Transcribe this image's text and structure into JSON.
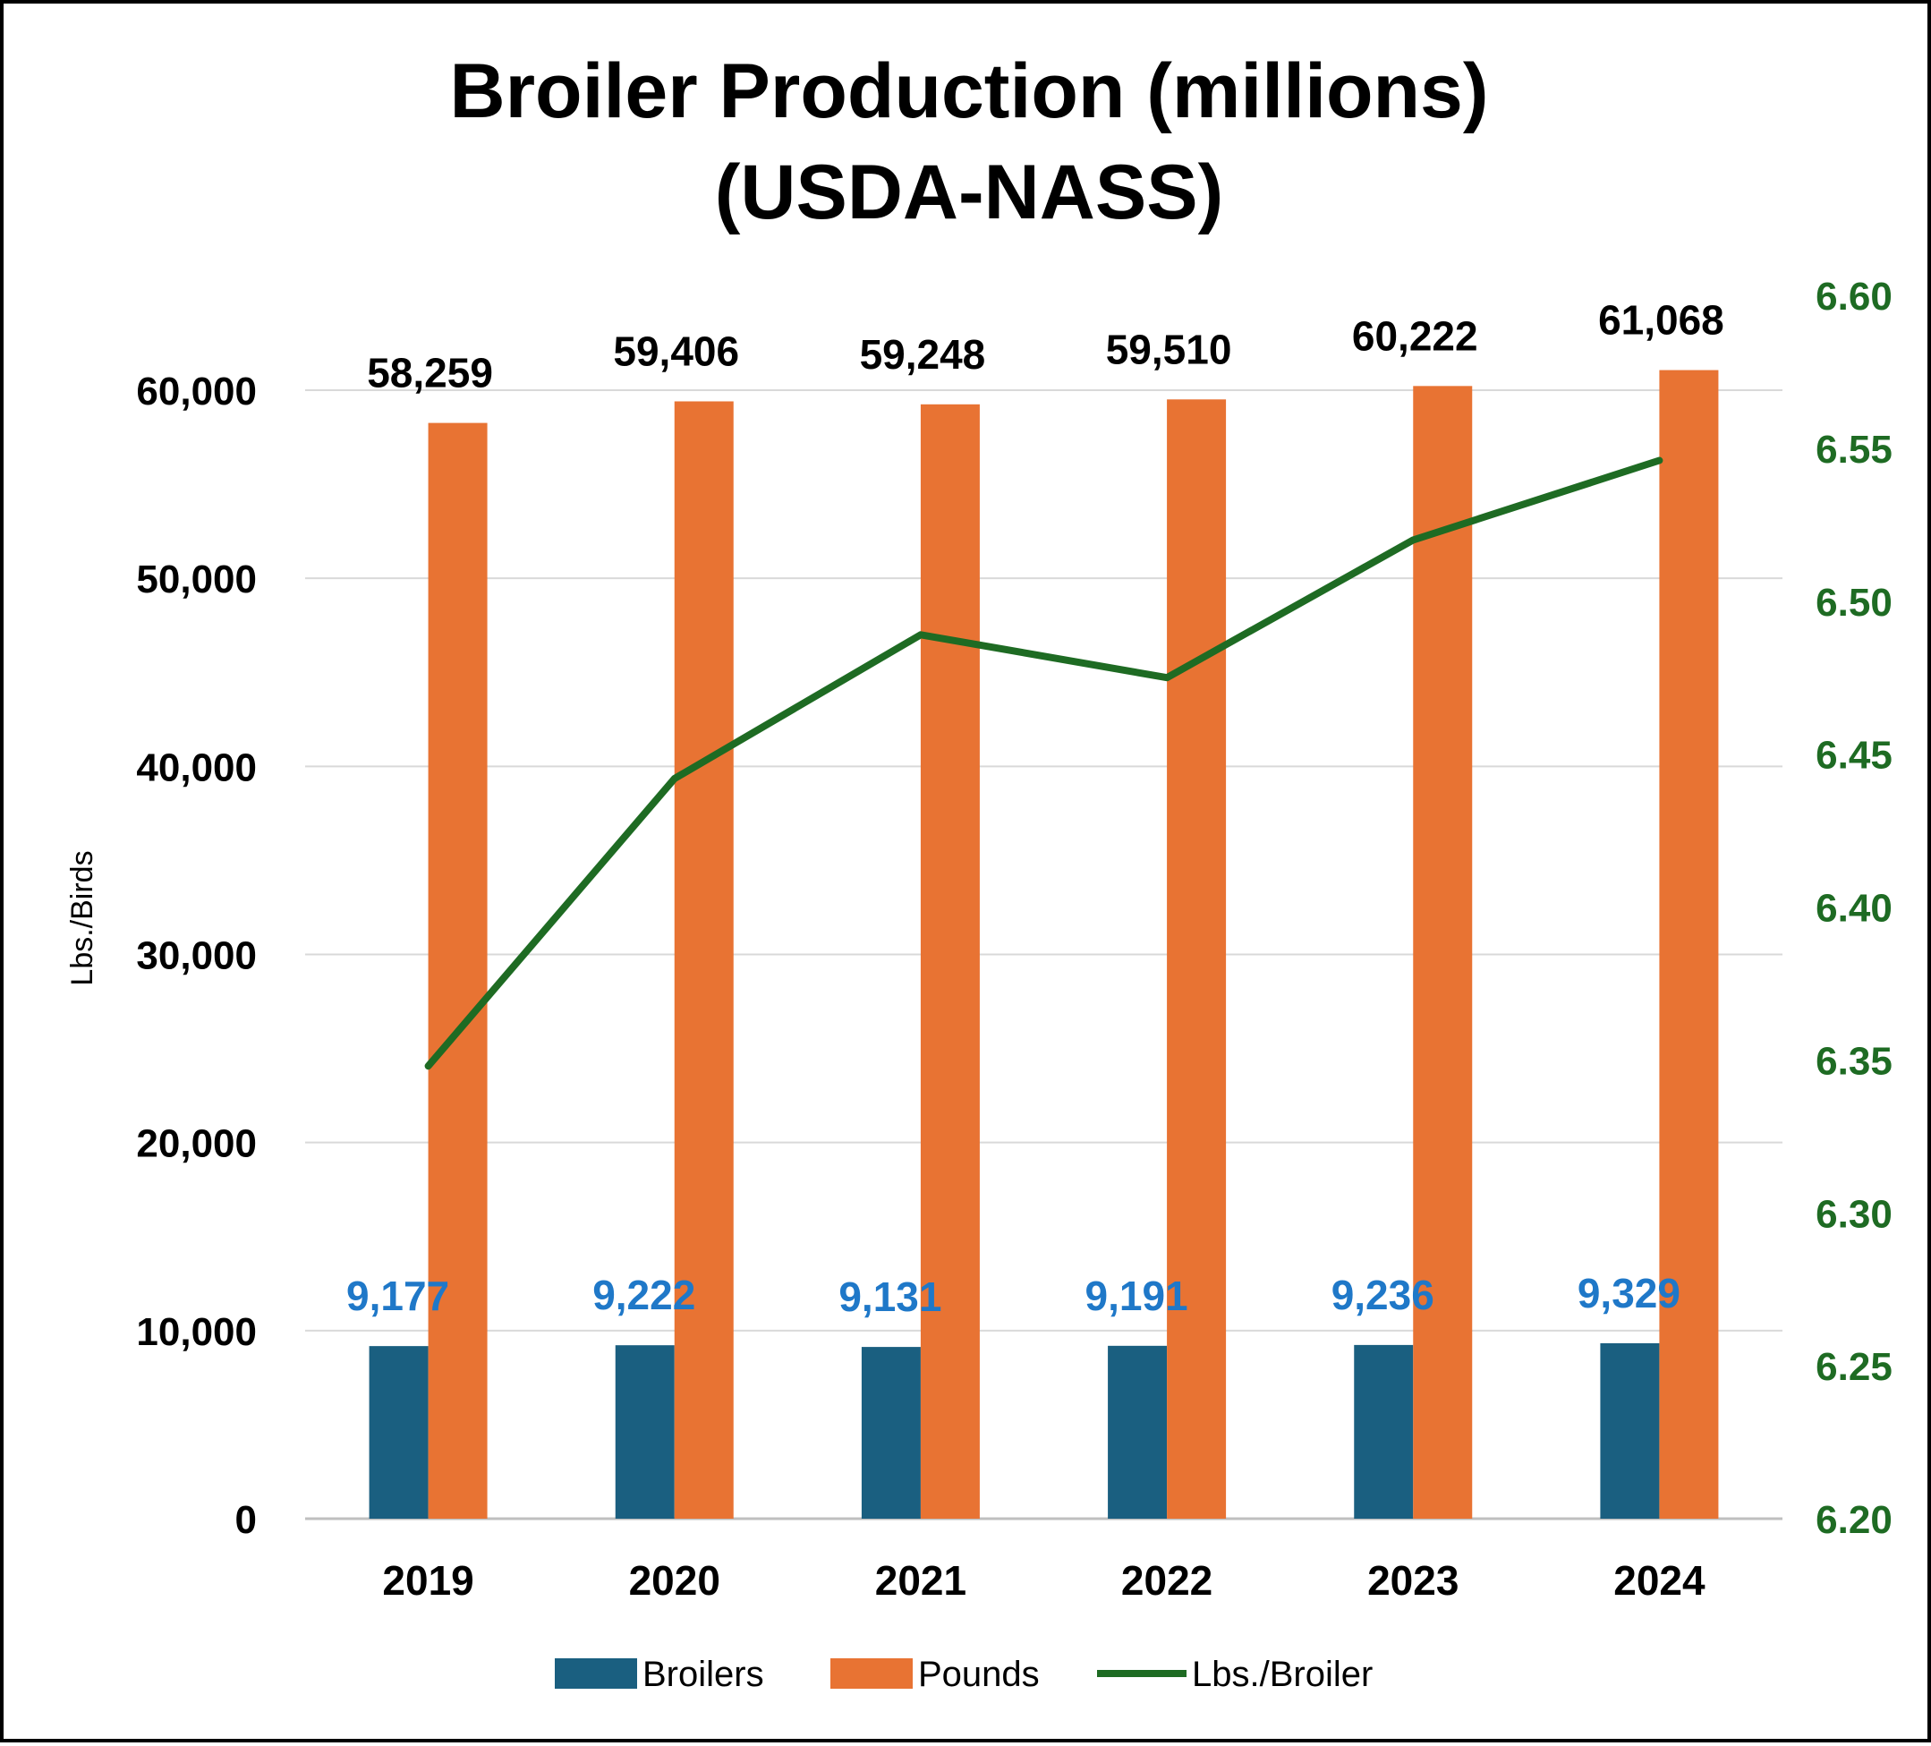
{
  "chart_data": {
    "type": "bar",
    "title": "Broiler Production (millions)",
    "subtitle": "(USDA-NASS)",
    "ylabel": "Lbs./Birds",
    "xlabel": "",
    "categories": [
      "2019",
      "2020",
      "2021",
      "2022",
      "2023",
      "2024"
    ],
    "series": [
      {
        "name": "Broilers",
        "type": "bar",
        "axis": "left",
        "color": "#1a5f80",
        "label_color": "#1f78c8",
        "values": [
          9177,
          9222,
          9131,
          9191,
          9236,
          9329
        ],
        "labels": [
          "9,177",
          "9,222",
          "9,131",
          "9,191",
          "9,236",
          "9,329"
        ]
      },
      {
        "name": "Pounds",
        "type": "bar",
        "axis": "left",
        "color": "#e87333",
        "label_color": "#000000",
        "values": [
          58259,
          59406,
          59248,
          59510,
          60222,
          61068
        ],
        "labels": [
          "58,259",
          "59,406",
          "59,248",
          "59,510",
          "60,222",
          "61,068"
        ]
      },
      {
        "name": "Lbs./Broiler",
        "type": "line",
        "axis": "right",
        "color": "#1e6b23",
        "values": [
          6.348,
          6.442,
          6.489,
          6.475,
          6.52,
          6.546
        ]
      }
    ],
    "ylim": [
      0,
      60000
    ],
    "yticks": [
      0,
      10000,
      20000,
      30000,
      40000,
      50000,
      60000
    ],
    "yticklabels": [
      "0",
      "10,000",
      "20,000",
      "30,000",
      "40,000",
      "50,000",
      "60,000"
    ],
    "y2lim": [
      6.2,
      6.6
    ],
    "y2ticks": [
      6.2,
      6.25,
      6.3,
      6.35,
      6.4,
      6.45,
      6.5,
      6.55,
      6.6
    ],
    "y2ticklabels": [
      "6.20",
      "6.25",
      "6.30",
      "6.35",
      "6.40",
      "6.45",
      "6.50",
      "6.55",
      "6.60"
    ],
    "y2tick_color": "#1e6b23",
    "grid": true,
    "legend": "bottom-center"
  }
}
